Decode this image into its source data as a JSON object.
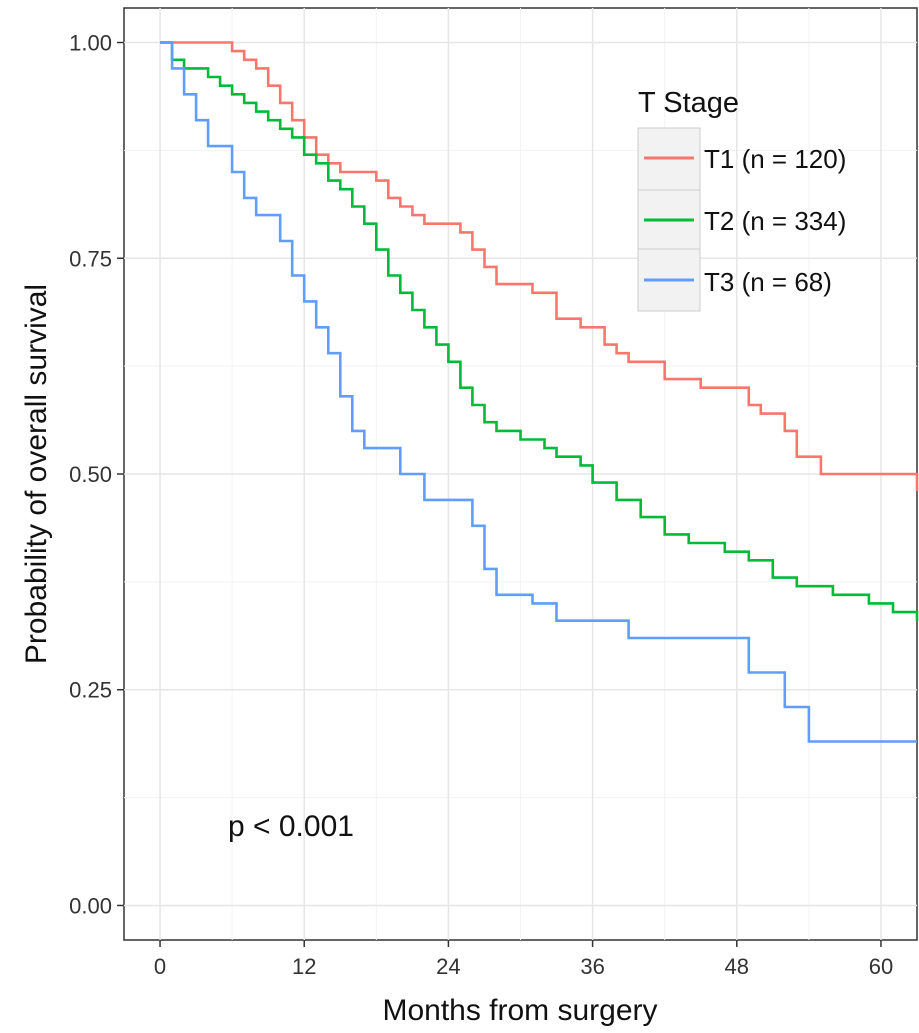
{
  "chart_data": {
    "type": "line",
    "step": true,
    "xlabel": "Months from surgery",
    "ylabel": "Probability of overall survival",
    "xlim": [
      -3,
      63
    ],
    "ylim": [
      -0.04,
      1.04
    ],
    "xticks": [
      0,
      12,
      24,
      36,
      48,
      60
    ],
    "yticks": [
      0.0,
      0.25,
      0.5,
      0.75,
      1.0
    ],
    "ytick_labels": [
      "0.00",
      "0.25",
      "0.50",
      "0.75",
      "1.00"
    ],
    "grid": true,
    "legend": {
      "title": "T Stage",
      "position": "top-right"
    },
    "annotation": "p < 0.001",
    "series": [
      {
        "name": "T1 (n = 120)",
        "color": "#f8766d",
        "points": [
          [
            0,
            1.0
          ],
          [
            6,
            0.99
          ],
          [
            7,
            0.98
          ],
          [
            8,
            0.97
          ],
          [
            9,
            0.95
          ],
          [
            10,
            0.93
          ],
          [
            11,
            0.91
          ],
          [
            12,
            0.89
          ],
          [
            13,
            0.87
          ],
          [
            14,
            0.86
          ],
          [
            15,
            0.85
          ],
          [
            18,
            0.84
          ],
          [
            19,
            0.82
          ],
          [
            20,
            0.81
          ],
          [
            21,
            0.8
          ],
          [
            22,
            0.79
          ],
          [
            25,
            0.78
          ],
          [
            26,
            0.76
          ],
          [
            27,
            0.74
          ],
          [
            28,
            0.72
          ],
          [
            31,
            0.71
          ],
          [
            33,
            0.68
          ],
          [
            35,
            0.67
          ],
          [
            37,
            0.65
          ],
          [
            38,
            0.64
          ],
          [
            39,
            0.63
          ],
          [
            42,
            0.61
          ],
          [
            45,
            0.6
          ],
          [
            49,
            0.58
          ],
          [
            50,
            0.57
          ],
          [
            52,
            0.55
          ],
          [
            53,
            0.52
          ],
          [
            55,
            0.5
          ],
          [
            63,
            0.48
          ]
        ]
      },
      {
        "name": "T2 (n = 334)",
        "color": "#00ba38",
        "points": [
          [
            0,
            1.0
          ],
          [
            1,
            0.98
          ],
          [
            2,
            0.97
          ],
          [
            4,
            0.96
          ],
          [
            5,
            0.95
          ],
          [
            6,
            0.94
          ],
          [
            7,
            0.93
          ],
          [
            8,
            0.92
          ],
          [
            9,
            0.91
          ],
          [
            10,
            0.9
          ],
          [
            11,
            0.89
          ],
          [
            12,
            0.87
          ],
          [
            13,
            0.86
          ],
          [
            14,
            0.84
          ],
          [
            15,
            0.83
          ],
          [
            16,
            0.81
          ],
          [
            17,
            0.79
          ],
          [
            18,
            0.76
          ],
          [
            19,
            0.73
          ],
          [
            20,
            0.71
          ],
          [
            21,
            0.69
          ],
          [
            22,
            0.67
          ],
          [
            23,
            0.65
          ],
          [
            24,
            0.63
          ],
          [
            25,
            0.6
          ],
          [
            26,
            0.58
          ],
          [
            27,
            0.56
          ],
          [
            28,
            0.55
          ],
          [
            30,
            0.54
          ],
          [
            32,
            0.53
          ],
          [
            33,
            0.52
          ],
          [
            35,
            0.51
          ],
          [
            36,
            0.49
          ],
          [
            38,
            0.47
          ],
          [
            40,
            0.45
          ],
          [
            42,
            0.43
          ],
          [
            44,
            0.42
          ],
          [
            47,
            0.41
          ],
          [
            49,
            0.4
          ],
          [
            51,
            0.38
          ],
          [
            53,
            0.37
          ],
          [
            56,
            0.36
          ],
          [
            59,
            0.35
          ],
          [
            61,
            0.34
          ],
          [
            63,
            0.33
          ]
        ]
      },
      {
        "name": "T3 (n = 68)",
        "color": "#619cff",
        "points": [
          [
            0,
            1.0
          ],
          [
            1,
            0.97
          ],
          [
            2,
            0.94
          ],
          [
            3,
            0.91
          ],
          [
            4,
            0.88
          ],
          [
            6,
            0.85
          ],
          [
            7,
            0.82
          ],
          [
            8,
            0.8
          ],
          [
            10,
            0.77
          ],
          [
            11,
            0.73
          ],
          [
            12,
            0.7
          ],
          [
            13,
            0.67
          ],
          [
            14,
            0.64
          ],
          [
            15,
            0.59
          ],
          [
            16,
            0.55
          ],
          [
            17,
            0.53
          ],
          [
            20,
            0.5
          ],
          [
            22,
            0.47
          ],
          [
            26,
            0.44
          ],
          [
            27,
            0.39
          ],
          [
            28,
            0.36
          ],
          [
            31,
            0.35
          ],
          [
            33,
            0.33
          ],
          [
            39,
            0.31
          ],
          [
            49,
            0.27
          ],
          [
            52,
            0.23
          ],
          [
            54,
            0.19
          ],
          [
            63,
            0.19
          ]
        ]
      }
    ]
  }
}
